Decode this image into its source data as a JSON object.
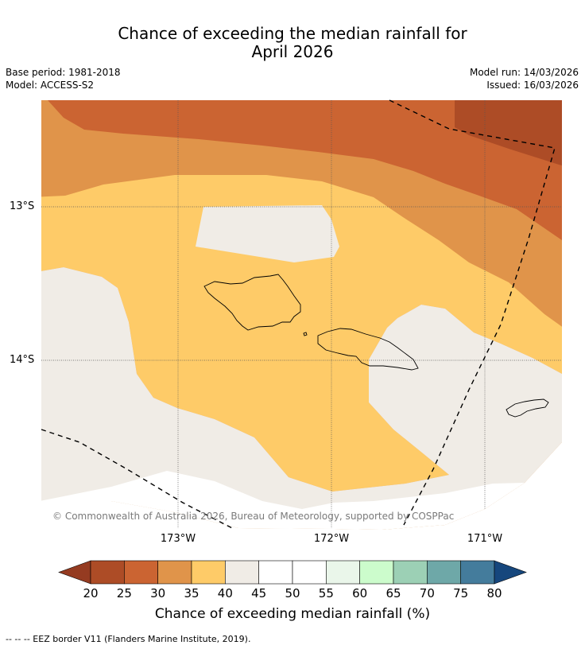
{
  "title_line1": "Chance of exceeding the median rainfall for",
  "title_line2": "April 2026",
  "meta_left": {
    "base_period": "Base period: 1981-2018",
    "model": "Model: ACCESS-S2"
  },
  "meta_right": {
    "model_run": "Model run: 14/03/2026",
    "issued": "Issued: 16/03/2026"
  },
  "map": {
    "lat_labels": [
      "13°S",
      "14°S"
    ],
    "lon_labels": [
      "173°W",
      "172°W",
      "171°W"
    ],
    "copyright": "© Commonwealth of Australia 2026, Bureau of Meteorology, supported by COSPPac",
    "fill_colors": {
      "c20_25": "#ad4c26",
      "c25_30": "#cb6432",
      "c30_35": "#e0944a",
      "c35_40": "#fecb68",
      "c40_45": "#f0ece6"
    }
  },
  "colorbar": {
    "ticks": [
      "20",
      "25",
      "30",
      "35",
      "40",
      "45",
      "50",
      "55",
      "60",
      "65",
      "70",
      "75",
      "80"
    ],
    "colors": [
      "#ad4c26",
      "#cb6432",
      "#e0944a",
      "#fecb68",
      "#f0ece6",
      "#ffffff",
      "#ffffff",
      "#eaf6ea",
      "#ccfccc",
      "#9cd0b5",
      "#6ea8a8",
      "#447c9c"
    ],
    "under_color": "#953b21",
    "over_color": "#16477d",
    "label": "Chance of exceeding median rainfall (%)"
  },
  "footnote": "--  --  -- EEZ border V11 (Flanders Marine Institute, 2019)."
}
